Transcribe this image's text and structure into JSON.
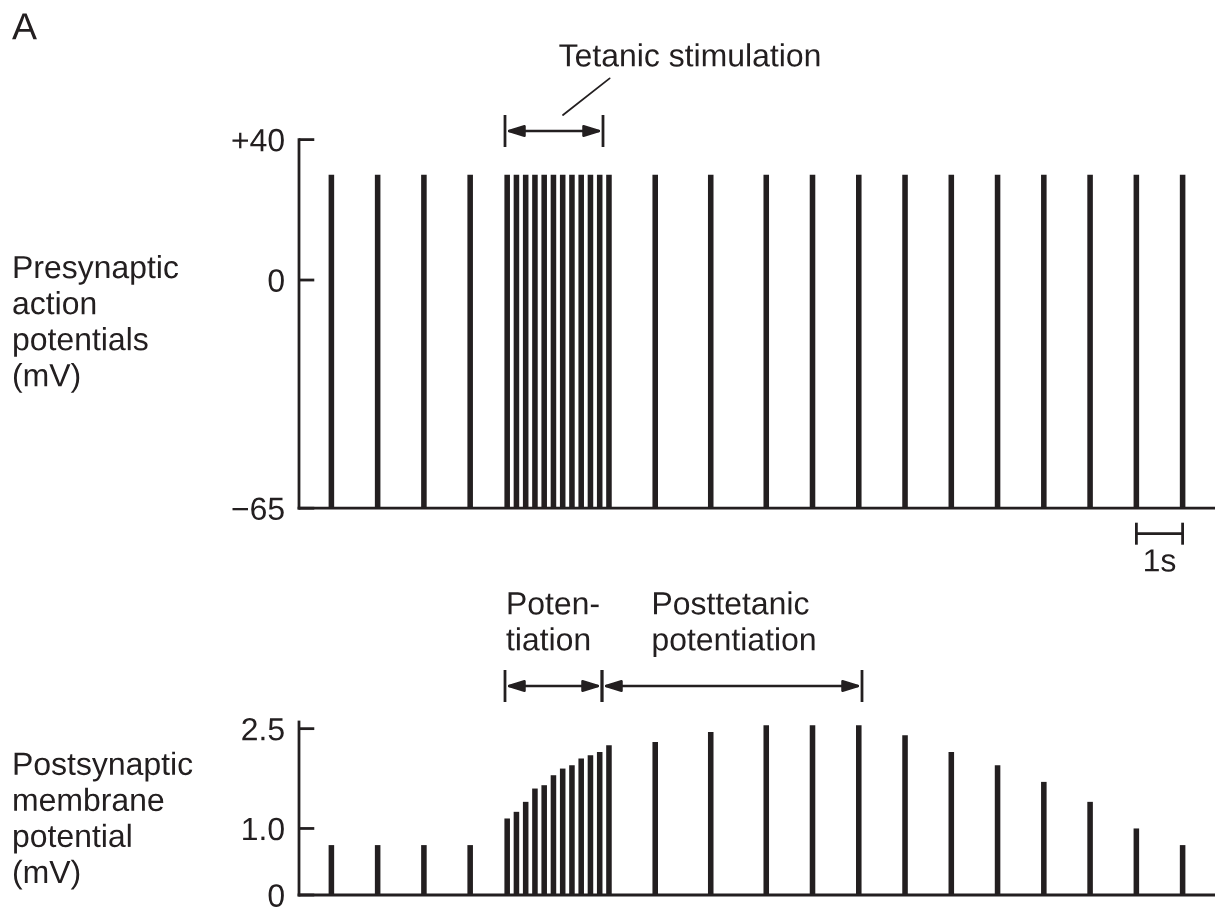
{
  "chart_data": [
    {
      "type": "bar",
      "title": "A",
      "ylabel": "Presynaptic\naction\npotentials\n(mV)",
      "categories": [
        null,
        null,
        null,
        null,
        null,
        null,
        null,
        null,
        null,
        null,
        null,
        null,
        null,
        null,
        null,
        null,
        null,
        null,
        null,
        null,
        null,
        null,
        null,
        null,
        null,
        null,
        null,
        null,
        null,
        null,
        null,
        null,
        null,
        null,
        null,
        null,
        null,
        null,
        null,
        null,
        null,
        null,
        null,
        null,
        null,
        null,
        null,
        null,
        null,
        null,
        null,
        null,
        null,
        null,
        null,
        null,
        null,
        null,
        null,
        null,
        null,
        null,
        null,
        null,
        null,
        null,
        null,
        null,
        null,
        null,
        null,
        null,
        null,
        null,
        null,
        null,
        null,
        null,
        null,
        null,
        null,
        null,
        null,
        null,
        null,
        null,
        null,
        null,
        null,
        null,
        null,
        null,
        null,
        null,
        null,
        null,
        null,
        null,
        null
      ],
      "values": [
        null,
        null,
        null,
        95,
        null,
        null,
        null,
        null,
        95,
        null,
        null,
        null,
        null,
        95,
        null,
        null,
        null,
        null,
        95,
        null,
        null,
        null,
        95,
        95,
        95,
        95,
        95,
        95,
        95,
        95,
        95,
        95,
        95,
        95,
        null,
        null,
        null,
        null,
        95,
        null,
        null,
        null,
        null,
        null,
        95,
        null,
        null,
        null,
        null,
        null,
        95,
        null,
        null,
        null,
        null,
        95,
        null,
        null,
        null,
        null,
        95,
        null,
        null,
        null,
        null,
        95,
        null,
        null,
        null,
        null,
        95,
        null,
        null,
        null,
        null,
        95,
        null,
        null,
        null,
        null,
        95,
        null,
        null,
        null,
        null,
        95,
        null,
        null,
        null,
        null,
        95,
        null,
        null,
        null,
        null,
        95,
        null,
        null,
        null
      ],
      "base": [
        null,
        null,
        null,
        -65,
        null,
        null,
        null,
        null,
        -65,
        null,
        null,
        null,
        null,
        -65,
        null,
        null,
        null,
        null,
        -65,
        null,
        null,
        null,
        -65,
        -65,
        -65,
        -65,
        -65,
        -65,
        -65,
        -65,
        -65,
        -65,
        -65,
        -65,
        null,
        null,
        null,
        null,
        -65,
        null,
        null,
        null,
        null,
        null,
        -65,
        null,
        null,
        null,
        null,
        null,
        -65,
        null,
        null,
        null,
        null,
        -65,
        null,
        null,
        null,
        null,
        -65,
        null,
        null,
        null,
        null,
        -65,
        null,
        null,
        null,
        null,
        -65,
        null,
        null,
        null,
        null,
        -65,
        null,
        null,
        null,
        null,
        -65,
        null,
        null,
        null,
        null,
        -65,
        null,
        null,
        null,
        null,
        -65,
        null,
        null,
        null,
        null,
        -65,
        null,
        null,
        null
      ],
      "color": "#231f20",
      "ylim": [
        -65,
        40
      ],
      "yticks": [
        {
          "value": -65,
          "label": "−65"
        },
        {
          "value": 0,
          "label": "0"
        },
        {
          "value": 40,
          "label": "+40"
        }
      ],
      "tick_labels": "y",
      "annotations": [
        "Tetanic stimulation",
        "1s"
      ]
    },
    {
      "type": "bar",
      "ylabel": "Postsynaptic\nmembrane\npotential\n(mV)",
      "categories": [
        null,
        null,
        null,
        null,
        null,
        null,
        null,
        null,
        null,
        null,
        null,
        null,
        null,
        null,
        null,
        null,
        null,
        null,
        null,
        null,
        null,
        null,
        null,
        null,
        null,
        null,
        null,
        null,
        null,
        null,
        null,
        null,
        null,
        null,
        null,
        null,
        null,
        null,
        null,
        null,
        null,
        null,
        null,
        null,
        null,
        null,
        null,
        null,
        null,
        null,
        null,
        null,
        null,
        null,
        null,
        null,
        null,
        null,
        null,
        null,
        null,
        null,
        null,
        null,
        null,
        null,
        null,
        null,
        null,
        null,
        null,
        null,
        null,
        null,
        null,
        null,
        null,
        null,
        null,
        null,
        null,
        null,
        null,
        null,
        null,
        null,
        null,
        null,
        null,
        null,
        null,
        null,
        null,
        null,
        null,
        null,
        null,
        null,
        null
      ],
      "values": [
        null,
        null,
        null,
        0.75,
        null,
        null,
        null,
        null,
        0.75,
        null,
        null,
        null,
        null,
        0.75,
        null,
        null,
        null,
        null,
        0.75,
        null,
        null,
        null,
        1.15,
        1.25,
        1.4,
        1.6,
        1.65,
        1.8,
        1.9,
        1.95,
        2.05,
        2.1,
        2.15,
        2.25,
        null,
        null,
        null,
        null,
        2.3,
        null,
        null,
        null,
        null,
        null,
        2.45,
        null,
        null,
        null,
        null,
        null,
        2.55,
        null,
        null,
        null,
        null,
        2.55,
        null,
        null,
        null,
        null,
        2.55,
        null,
        null,
        null,
        null,
        2.4,
        null,
        null,
        null,
        null,
        2.15,
        null,
        null,
        null,
        null,
        1.95,
        null,
        null,
        null,
        null,
        1.7,
        null,
        null,
        null,
        null,
        1.4,
        null,
        null,
        null,
        null,
        1.0,
        null,
        null,
        null,
        null,
        0.75,
        null,
        null,
        null
      ],
      "color": "#231f20",
      "ylim": [
        0,
        2.6
      ],
      "yticks": [
        {
          "value": 0,
          "label": "0"
        },
        {
          "value": 1.0,
          "label": "1.0"
        },
        {
          "value": 2.5,
          "label": "2.5"
        }
      ],
      "tick_labels": "y",
      "annotations": [
        "Poten-\ntiation",
        "Posttetanic\npotentiation"
      ]
    }
  ]
}
